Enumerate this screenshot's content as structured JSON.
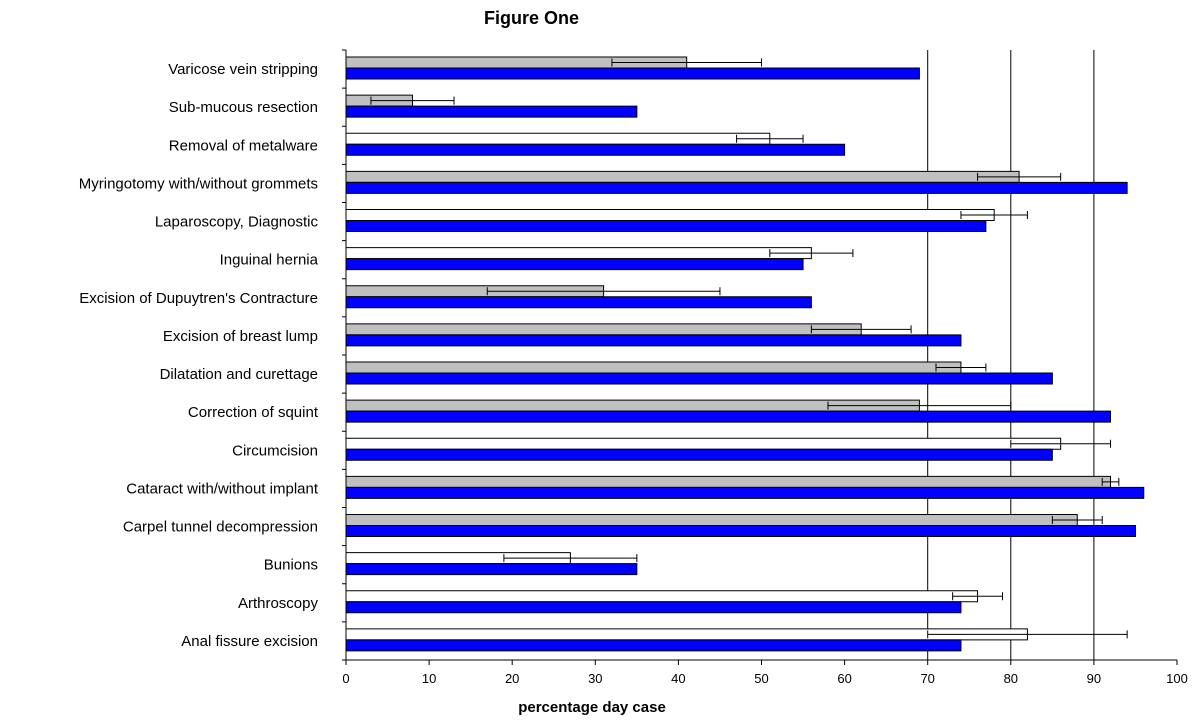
{
  "chart_data": {
    "type": "bar",
    "orientation": "horizontal",
    "title": "Figure One",
    "xlabel": "percentage day case",
    "ylabel": "",
    "xlim": [
      0,
      100
    ],
    "xticks": [
      0,
      10,
      20,
      30,
      40,
      50,
      60,
      70,
      80,
      90,
      100
    ],
    "grid": "vertical lines at 70, 80, 90",
    "legend": "none",
    "categories": [
      "Varicose vein stripping",
      "Sub-mucous resection",
      "Removal of metalware",
      "Myringotomy with/without grommets",
      "Laparoscopy, Diagnostic",
      "Inguinal hernia",
      "Excision of Dupuytren's Contracture",
      "Excision of breast lump",
      "Dilatation and curettage",
      "Correction of squint",
      "Circumcision",
      "Cataract with/without implant",
      "Carpel tunnel decompression",
      "Bunions",
      "Arthroscopy",
      "Anal fissure excision"
    ],
    "series": [
      {
        "style": "bar with error bar",
        "values": [
          41,
          8,
          51,
          81,
          78,
          56,
          31,
          62,
          74,
          69,
          86,
          92,
          88,
          27,
          76,
          82
        ],
        "error_low": [
          32,
          3,
          47,
          76,
          74,
          51,
          17,
          56,
          71,
          58,
          80,
          91,
          85,
          19,
          73,
          70
        ],
        "error_high": [
          50,
          13,
          55,
          86,
          82,
          61,
          45,
          68,
          77,
          80,
          92,
          93,
          91,
          35,
          79,
          94
        ],
        "fills": [
          "#c0c0c0",
          "#c0c0c0",
          "#ffffff",
          "#c0c0c0",
          "#ffffff",
          "#ffffff",
          "#c0c0c0",
          "#c0c0c0",
          "#c0c0c0",
          "#c0c0c0",
          "#ffffff",
          "#c0c0c0",
          "#c0c0c0",
          "#ffffff",
          "#ffffff",
          "#ffffff"
        ]
      },
      {
        "style": "bar",
        "color": "#0000ff",
        "values": [
          69,
          35,
          60,
          94,
          77,
          55,
          56,
          74,
          85,
          92,
          85,
          96,
          95,
          35,
          74,
          74
        ]
      }
    ]
  }
}
